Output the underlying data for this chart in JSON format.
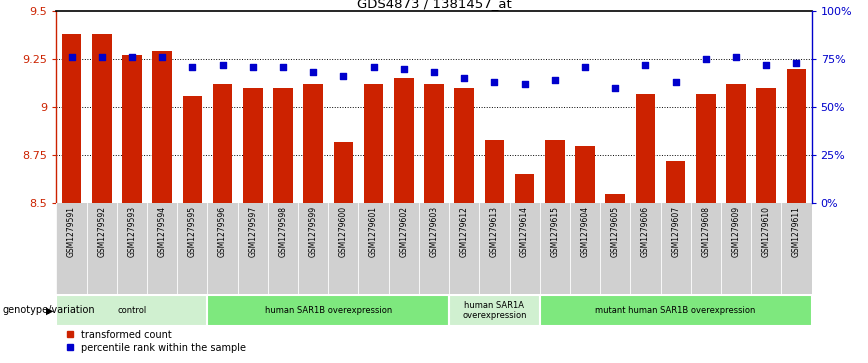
{
  "title": "GDS4873 / 1381457_at",
  "samples": [
    "GSM1279591",
    "GSM1279592",
    "GSM1279593",
    "GSM1279594",
    "GSM1279595",
    "GSM1279596",
    "GSM1279597",
    "GSM1279598",
    "GSM1279599",
    "GSM1279600",
    "GSM1279601",
    "GSM1279602",
    "GSM1279603",
    "GSM1279612",
    "GSM1279613",
    "GSM1279614",
    "GSM1279615",
    "GSM1279604",
    "GSM1279605",
    "GSM1279606",
    "GSM1279607",
    "GSM1279608",
    "GSM1279609",
    "GSM1279610",
    "GSM1279611"
  ],
  "bar_values": [
    9.38,
    9.38,
    9.27,
    9.29,
    9.06,
    9.12,
    9.1,
    9.1,
    9.12,
    8.82,
    9.12,
    9.15,
    9.12,
    9.1,
    8.83,
    8.65,
    8.83,
    8.8,
    8.55,
    9.07,
    8.72,
    9.07,
    9.12,
    9.1,
    9.2
  ],
  "percentile_values": [
    76,
    76,
    76,
    76,
    71,
    72,
    71,
    71,
    68,
    66,
    71,
    70,
    68,
    65,
    63,
    62,
    64,
    71,
    60,
    72,
    63,
    75,
    76,
    72,
    73
  ],
  "groups": [
    {
      "label": "control",
      "start": 0,
      "end": 5,
      "color": "#d0f0d0"
    },
    {
      "label": "human SAR1B overexpression",
      "start": 5,
      "end": 13,
      "color": "#7ee87e"
    },
    {
      "label": "human SAR1A\noverexpression",
      "start": 13,
      "end": 16,
      "color": "#d0f0d0"
    },
    {
      "label": "mutant human SAR1B overexpression",
      "start": 16,
      "end": 25,
      "color": "#7ee87e"
    }
  ],
  "bar_color": "#cc2200",
  "dot_color": "#0000cc",
  "ylim": [
    8.5,
    9.5
  ],
  "y_ticks": [
    8.5,
    8.75,
    9.0,
    9.25,
    9.5
  ],
  "y_tick_labels": [
    "8.5",
    "8.75",
    "9",
    "9.25",
    "9.5"
  ],
  "right_y_ticks": [
    0,
    25,
    50,
    75,
    100
  ],
  "right_y_tick_labels": [
    "0%",
    "25%",
    "50%",
    "75%",
    "100%"
  ],
  "background_color": "#ffffff",
  "genotype_label": "genotype/variation",
  "legend_items": [
    {
      "color": "#cc2200",
      "marker": "s",
      "label": "transformed count"
    },
    {
      "color": "#0000cc",
      "marker": "s",
      "label": "percentile rank within the sample"
    }
  ]
}
